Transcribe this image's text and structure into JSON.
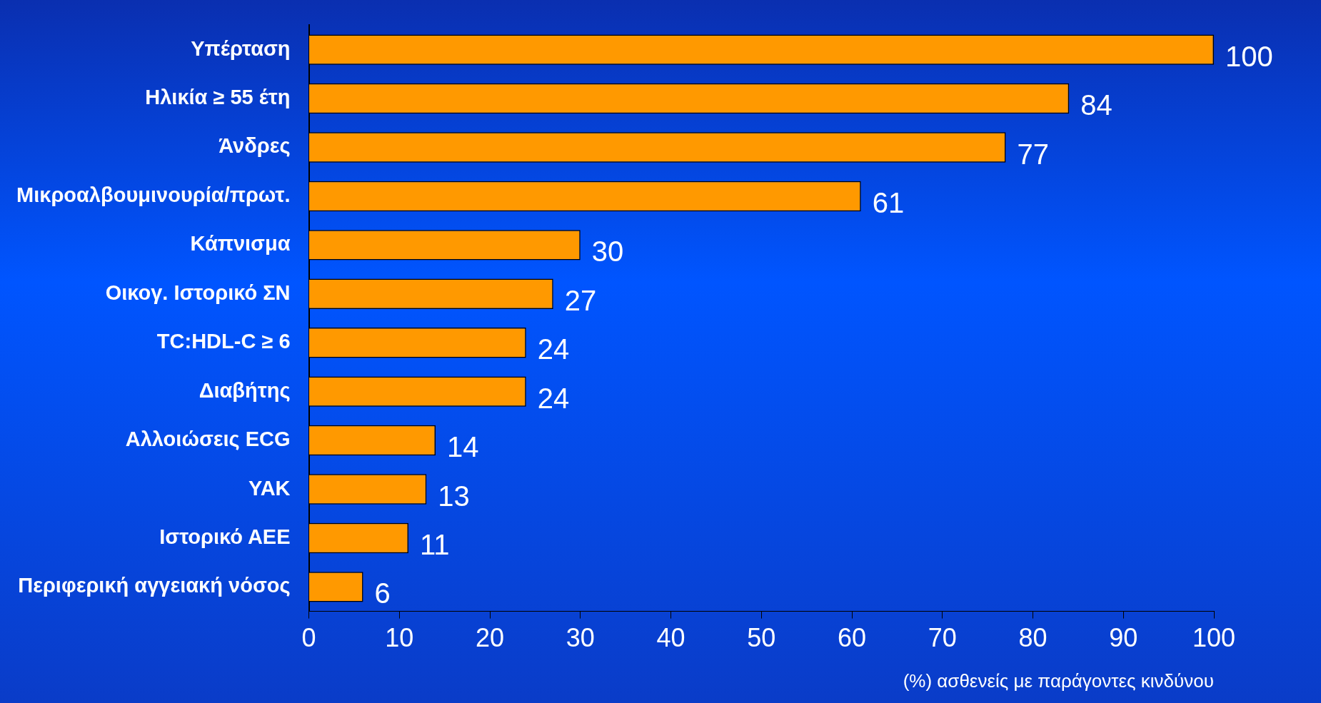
{
  "chart_data": {
    "type": "bar",
    "orientation": "horizontal",
    "xlabel": "(%) ασθενείς με παράγοντες κινδύνου",
    "categories": [
      "Υπέρταση",
      "Ηλικία ≥ 55 έτη",
      "Άνδρες",
      "Μικροαλβουμινουρία/πρωτ.",
      "Κάπνισμα",
      "Οικογ. Ιστορικό ΣΝ",
      "TC:HDL-C ≥ 6",
      "Διαβήτης",
      "Αλλοιώσεις ECG",
      "ΥΑΚ",
      "Ιστορικό ΑΕΕ",
      "Περιφερική αγγειακή νόσος"
    ],
    "values": [
      100,
      84,
      77,
      61,
      30,
      27,
      24,
      24,
      14,
      13,
      11,
      6
    ],
    "color": "#ff9900",
    "xlim": [
      0,
      100
    ],
    "xticks": [
      0,
      10,
      20,
      30,
      40,
      50,
      60,
      70,
      80,
      90,
      100
    ],
    "data_labels": true
  }
}
